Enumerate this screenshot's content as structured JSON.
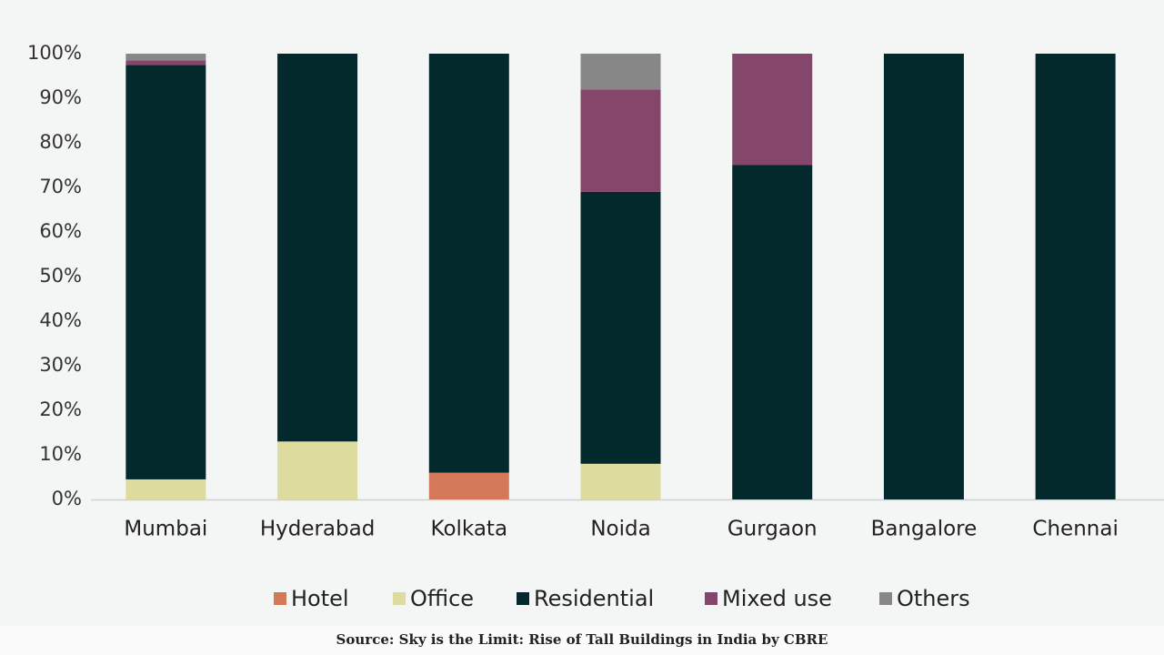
{
  "chart_data": {
    "type": "stacked_bar",
    "categories": [
      "Mumbai",
      "Hyderabad",
      "Kolkata",
      "Noida",
      "Gurgaon",
      "Bangalore",
      "Chennai"
    ],
    "series": [
      {
        "name": "Hotel",
        "color": "#d4785a",
        "values": [
          0,
          0,
          6,
          0,
          0,
          0,
          0
        ]
      },
      {
        "name": "Office",
        "color": "#dedb9e",
        "values": [
          4.5,
          13,
          0,
          8,
          0,
          0,
          0
        ]
      },
      {
        "name": "Residential",
        "color": "#03292c",
        "values": [
          93,
          87,
          94,
          61,
          75,
          100,
          100
        ]
      },
      {
        "name": "Mixed use",
        "color": "#85466b",
        "values": [
          1,
          0,
          0,
          23,
          25,
          0,
          0
        ]
      },
      {
        "name": "Others",
        "color": "#878787",
        "values": [
          1.5,
          0,
          0,
          8,
          0,
          0,
          0
        ]
      }
    ],
    "ylim": [
      0,
      100
    ],
    "yticks": [
      {
        "value": 0,
        "label": "0%"
      },
      {
        "value": 10,
        "label": "10%"
      },
      {
        "value": 20,
        "label": "20%"
      },
      {
        "value": 30,
        "label": "30%"
      },
      {
        "value": 40,
        "label": "40%"
      },
      {
        "value": 50,
        "label": "50%"
      },
      {
        "value": 60,
        "label": "60%"
      },
      {
        "value": 70,
        "label": "70%"
      },
      {
        "value": 80,
        "label": "80%"
      },
      {
        "value": 90,
        "label": "90%"
      },
      {
        "value": 100,
        "label": "100%"
      }
    ],
    "grid": false,
    "legend": "bottom",
    "source": "Source: Sky is the Limit: Rise of Tall Buildings in India by CBRE"
  }
}
